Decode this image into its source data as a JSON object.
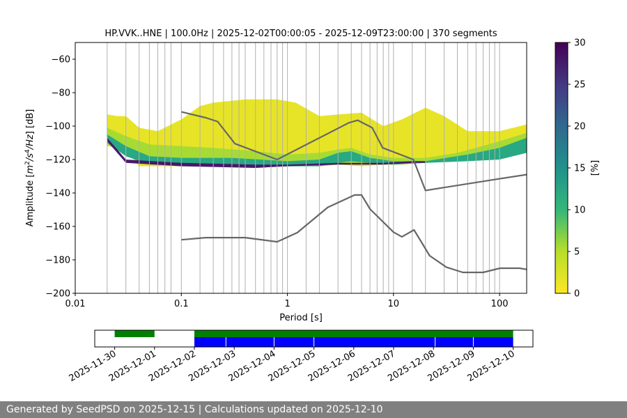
{
  "chart_data": [
    {
      "type": "heatmap",
      "title": "HP.VVK..HNE | 100.0Hz | 2025-12-02T00:00:05 - 2025-12-09T23:00:00 | 370 segments",
      "xlabel": "Period [s]",
      "ylabel_parts": [
        "Amplitude [",
        "m",
        "2",
        "/",
        "s",
        "4",
        "/",
        "Hz",
        "] [dB]"
      ],
      "x_scale": "log",
      "xlim": [
        0.01,
        180
      ],
      "ylim": [
        -200,
        -50
      ],
      "x_ticks": [
        0.01,
        0.1,
        1,
        10,
        100
      ],
      "x_tick_labels": [
        "0.01",
        "0.1",
        "1",
        "10",
        "100"
      ],
      "y_ticks": [
        -200,
        -180,
        -160,
        -140,
        -120,
        -100,
        -80,
        -60
      ],
      "y_tick_labels": [
        "−200",
        "−180",
        "−160",
        "−140",
        "−120",
        "−100",
        "−80",
        "−60"
      ],
      "grid_periods": [
        0.02,
        0.03,
        0.04,
        0.05,
        0.06,
        0.07,
        0.08,
        0.1,
        0.15,
        0.2,
        0.25,
        0.3,
        0.35,
        0.4,
        0.5,
        0.6,
        0.7,
        0.8,
        0.9,
        1.0,
        1.5,
        2,
        3,
        4,
        5,
        6,
        7,
        8,
        9,
        10,
        15,
        20,
        30,
        40,
        50,
        60,
        70,
        80,
        90,
        100
      ],
      "colorbar": {
        "label": "[%]",
        "min": 0,
        "max": 30,
        "ticks": [
          0,
          5,
          10,
          15,
          20,
          25,
          30
        ]
      },
      "density_bands": [
        {
          "level": 1,
          "points": [
            [
              0.02,
              -93,
              -112
            ],
            [
              0.025,
              -94,
              -113
            ],
            [
              0.03,
              -94,
              -114
            ],
            [
              0.04,
              -101,
              -124
            ],
            [
              0.06,
              -103,
              -124
            ],
            [
              0.1,
              -96,
              -124
            ],
            [
              0.15,
              -88,
              -124
            ],
            [
              0.2,
              -86,
              -124
            ],
            [
              0.4,
              -84,
              -124
            ],
            [
              0.8,
              -84,
              -124
            ],
            [
              1.2,
              -86,
              -123
            ],
            [
              2,
              -94,
              -124
            ],
            [
              3,
              -93,
              -123
            ],
            [
              5,
              -92,
              -124
            ],
            [
              8,
              -100,
              -123
            ],
            [
              12,
              -96,
              -123
            ],
            [
              20,
              -89,
              -122
            ],
            [
              30,
              -94,
              -121
            ],
            [
              50,
              -103,
              -119
            ],
            [
              100,
              -103,
              -117
            ],
            [
              180,
              -99,
              -112
            ]
          ]
        },
        {
          "level": 4,
          "points": [
            [
              0.02,
              -101,
              -111
            ],
            [
              0.03,
              -106,
              -117
            ],
            [
              0.05,
              -111,
              -122
            ],
            [
              0.1,
              -112,
              -123
            ],
            [
              0.2,
              -113,
              -124
            ],
            [
              0.5,
              -115,
              -124
            ],
            [
              1,
              -117,
              -124
            ],
            [
              2,
              -116,
              -124
            ],
            [
              3,
              -114,
              -123
            ],
            [
              4,
              -113,
              -123
            ],
            [
              6,
              -117,
              -123
            ],
            [
              10,
              -119,
              -123
            ],
            [
              20,
              -119,
              -122
            ],
            [
              40,
              -116,
              -121
            ],
            [
              60,
              -113,
              -120
            ],
            [
              100,
              -109,
              -119
            ],
            [
              180,
              -104,
              -114
            ]
          ]
        },
        {
          "level": 12,
          "points": [
            [
              0.02,
              -105,
              -110
            ],
            [
              0.03,
              -112,
              -118
            ],
            [
              0.05,
              -118,
              -123
            ],
            [
              0.1,
              -119,
              -123
            ],
            [
              0.3,
              -119,
              -124
            ],
            [
              1,
              -121,
              -124
            ],
            [
              2,
              -120,
              -124
            ],
            [
              3,
              -116,
              -122
            ],
            [
              4,
              -115,
              -121
            ],
            [
              6,
              -119,
              -122
            ],
            [
              10,
              -121,
              -123
            ],
            [
              20,
              -121,
              -122
            ],
            [
              50,
              -117,
              -121
            ],
            [
              100,
              -113,
              -120
            ],
            [
              180,
              -107,
              -116
            ]
          ]
        },
        {
          "level": 28,
          "points": [
            [
              0.02,
              -107,
              -109
            ],
            [
              0.03,
              -120,
              -122
            ],
            [
              0.1,
              -122,
              -124
            ],
            [
              0.5,
              -123,
              -125
            ],
            [
              1,
              -123,
              -124
            ],
            [
              3,
              -122,
              -123
            ],
            [
              8,
              -122,
              -123
            ],
            [
              15,
              -121,
              -122
            ],
            [
              20,
              -121,
              -122
            ]
          ]
        }
      ],
      "noise_model_curves": [
        {
          "points": [
            [
              0.1,
              -91.5
            ],
            [
              0.17,
              -95
            ],
            [
              0.22,
              -97.3
            ],
            [
              0.32,
              -110.5
            ],
            [
              0.8,
              -120
            ],
            [
              3.8,
              -98
            ],
            [
              4.6,
              -96.5
            ],
            [
              6.3,
              -101
            ],
            [
              7.9,
              -113
            ],
            [
              15.4,
              -120
            ],
            [
              20,
              -138.5
            ],
            [
              100,
              -131.5
            ],
            [
              180,
              -129
            ]
          ]
        },
        {
          "points": [
            [
              0.1,
              -168
            ],
            [
              0.17,
              -166.7
            ],
            [
              0.4,
              -166.7
            ],
            [
              0.8,
              -169.2
            ],
            [
              1.24,
              -163.7
            ],
            [
              2.4,
              -148.6
            ],
            [
              4.3,
              -141.2
            ],
            [
              5.0,
              -141.2
            ],
            [
              6.0,
              -149.6
            ],
            [
              10,
              -163.4
            ],
            [
              12,
              -166.2
            ],
            [
              15.6,
              -162.1
            ],
            [
              21.9,
              -177.5
            ],
            [
              31.6,
              -184.4
            ],
            [
              45,
              -187.5
            ],
            [
              70,
              -187.5
            ],
            [
              101,
              -185
            ],
            [
              154,
              -185
            ],
            [
              180,
              -185.7
            ]
          ]
        }
      ]
    },
    {
      "type": "timeline",
      "x_tick_labels": [
        "2025-11-30",
        "2025-12-01",
        "2025-12-02",
        "2025-12-03",
        "2025-12-04",
        "2025-12-05",
        "2025-12-06",
        "2025-12-07",
        "2025-12-08",
        "2025-12-09",
        "2025-12-10"
      ],
      "colors": {
        "data": "#008000",
        "segments": "#0000ff"
      },
      "data_availability": [
        [
          "2025-11-30T00:00",
          "2025-12-01T00:00"
        ],
        [
          "2025-12-02T00:00",
          "2025-12-10T00:00"
        ]
      ],
      "segment_coverage": [
        [
          "2025-12-02T00:00",
          "2025-12-10T00:00"
        ]
      ],
      "segment_breaks": [
        "2025-12-02T19:00",
        "2025-12-04T00:00",
        "2025-12-05T00:00",
        "2025-12-08T01:00",
        "2025-12-09T00:00"
      ]
    }
  ],
  "footer": {
    "text": "Generated by SeedPSD on 2025-12-15 | Calculations updated on 2025-12-10"
  }
}
